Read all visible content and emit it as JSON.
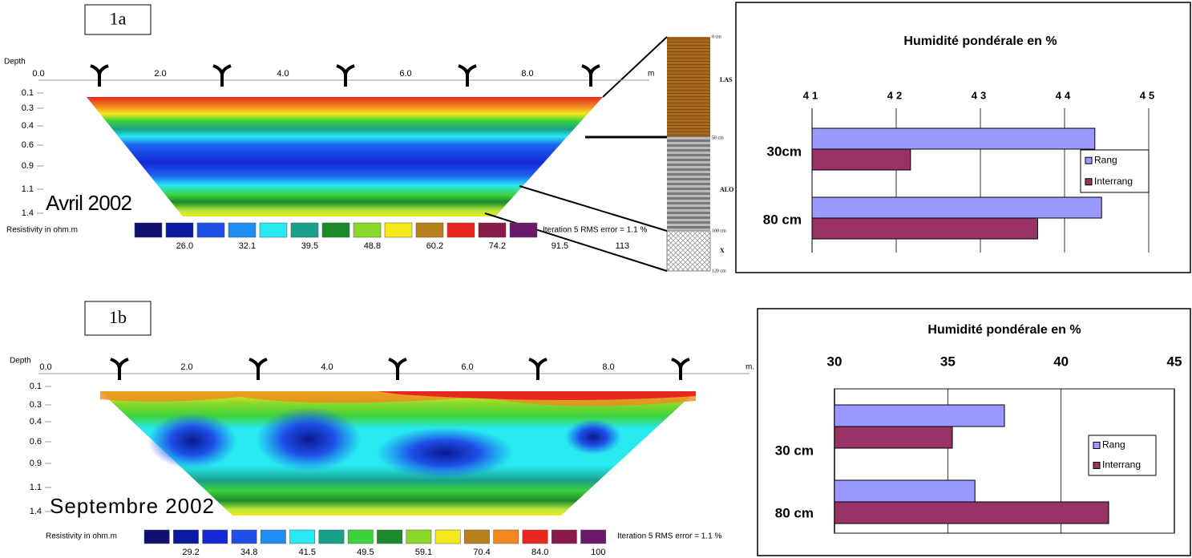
{
  "chart_data": [
    {
      "type": "barh",
      "title": "Humidité pondérale en %",
      "categories": [
        "30cm",
        "80 cm"
      ],
      "series": [
        {
          "name": "Rang",
          "color": "#9999ff",
          "values": [
            44.36,
            44.44
          ]
        },
        {
          "name": "Interrang",
          "color": "#993366",
          "values": [
            42.17,
            43.68
          ]
        }
      ],
      "xlim": [
        41,
        45
      ],
      "xticks": [
        41,
        42,
        43,
        44,
        45
      ],
      "grid": true,
      "legend": "right"
    },
    {
      "type": "barh",
      "title": "Humidité pondérale en %",
      "categories": [
        "30 cm",
        "80 cm"
      ],
      "series": [
        {
          "name": "Rang",
          "color": "#9999ff",
          "values": [
            37.5,
            36.2
          ]
        },
        {
          "name": "Interrang",
          "color": "#993366",
          "values": [
            35.2,
            42.1
          ]
        }
      ],
      "xlim": [
        30,
        45
      ],
      "xticks": [
        30,
        35,
        40,
        45
      ],
      "grid": true,
      "legend": "right"
    }
  ],
  "panels": [
    {
      "label": "1a",
      "date": "Avril 2002",
      "depth_title": "Depth",
      "depths": [
        "0.1",
        "0.3",
        "0.4",
        "0.6",
        "0.9",
        "1.1",
        "1.4"
      ],
      "distances": [
        "0.0",
        "2.0",
        "4.0",
        "6.0",
        "8.0"
      ],
      "unit": "m",
      "scale_title": "Resistivity in ohm.m",
      "scale": [
        "26.0",
        "32.1",
        "39.5",
        "48.8",
        "60.2",
        "74.2",
        "91.5",
        "113"
      ],
      "iteration": "Iteration 5 RMS error = 1.1 %"
    },
    {
      "label": "1b",
      "date": "Septembre 2002",
      "depth_title": "Depth",
      "depths": [
        "0.1",
        "0.3",
        "0.4",
        "0.6",
        "0.9",
        "1.1",
        "1.4"
      ],
      "distances": [
        "0.0",
        "2.0",
        "4.0",
        "6.0",
        "8.0"
      ],
      "unit": "m.",
      "scale_title": "Resistivity in ohm.m",
      "scale": [
        "29.2",
        "34.8",
        "41.5",
        "49.5",
        "59.1",
        "70.4",
        "84.0",
        "100"
      ],
      "iteration": "Iteration 5 RMS error = 1.1 %"
    }
  ],
  "soil_profile": {
    "depths": [
      "0 cm",
      "50 cm",
      "100 cm",
      "120 cm"
    ],
    "layers": [
      "LAS",
      "ALO",
      "X"
    ]
  }
}
